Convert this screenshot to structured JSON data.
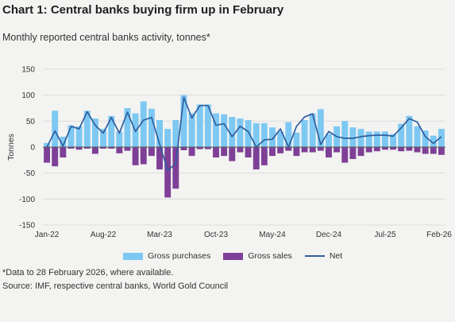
{
  "title": "Chart 1: Central banks buying firm up in February",
  "subtitle": "Monthly reported central banks activity, tonnes*",
  "footnote": "*Data to 28 February 2026, where available.",
  "source": "Source: IMF, respective central banks, World Gold Council",
  "colors": {
    "gross_purchases": "#7dc8f3",
    "gross_sales": "#7e3f97",
    "net": "#2f5d9e",
    "grid": "#dcdcdc",
    "zero_line": "#555555"
  },
  "chart_data": {
    "type": "bar",
    "ylabel": "Tonnes",
    "ylim": [
      -150,
      150
    ],
    "yticks": [
      150,
      100,
      50,
      0,
      -50,
      -100,
      -150
    ],
    "ytick_labels": [
      "150",
      "100",
      "50",
      "0",
      "-50",
      "-100",
      "-150"
    ],
    "xtick_labels": [
      "Jan-22",
      "Aug-22",
      "Mar-23",
      "Oct-23",
      "May-24",
      "Dec-24",
      "Jul-25",
      "Feb-26"
    ],
    "xtick_indices": [
      0,
      7,
      14,
      21,
      28,
      35,
      42,
      49
    ],
    "grid": true,
    "legend_position": "bottom",
    "categories": [
      "Jan-22",
      "Feb-22",
      "Mar-22",
      "Apr-22",
      "May-22",
      "Jun-22",
      "Jul-22",
      "Aug-22",
      "Sep-22",
      "Oct-22",
      "Nov-22",
      "Dec-22",
      "Jan-23",
      "Feb-23",
      "Mar-23",
      "Apr-23",
      "May-23",
      "Jun-23",
      "Jul-23",
      "Aug-23",
      "Sep-23",
      "Oct-23",
      "Nov-23",
      "Dec-23",
      "Jan-24",
      "Feb-24",
      "Mar-24",
      "Apr-24",
      "May-24",
      "Jun-24",
      "Jul-24",
      "Aug-24",
      "Sep-24",
      "Oct-24",
      "Nov-24",
      "Dec-24",
      "Jan-25",
      "Feb-25",
      "Mar-25",
      "Apr-25",
      "May-25",
      "Jun-25",
      "Jul-25",
      "Aug-25",
      "Sep-25",
      "Oct-25",
      "Nov-25",
      "Dec-25",
      "Jan-26",
      "Feb-26"
    ],
    "series": [
      {
        "name": "Gross purchases",
        "kind": "bar",
        "values": [
          8,
          70,
          20,
          42,
          40,
          70,
          55,
          35,
          60,
          30,
          75,
          65,
          88,
          74,
          52,
          35,
          52,
          100,
          65,
          82,
          82,
          65,
          63,
          58,
          55,
          52,
          46,
          46,
          38,
          30,
          48,
          28,
          52,
          65,
          73,
          25,
          40,
          50,
          38,
          35,
          30,
          30,
          30,
          25,
          45,
          60,
          40,
          32,
          22,
          35
        ]
      },
      {
        "name": "Gross sales",
        "kind": "bar",
        "values": [
          -30,
          -37,
          -20,
          -3,
          -5,
          -3,
          -13,
          -3,
          -3,
          -12,
          -7,
          -35,
          -33,
          -17,
          -43,
          -97,
          -80,
          -6,
          -17,
          -4,
          -4,
          -20,
          -17,
          -27,
          -10,
          -20,
          -43,
          -35,
          -17,
          -12,
          -7,
          -17,
          -10,
          -10,
          -7,
          -20,
          -10,
          -30,
          -23,
          -17,
          -10,
          -8,
          -5,
          -5,
          -8,
          -7,
          -10,
          -13,
          -13,
          -15
        ]
      },
      {
        "name": "Net",
        "kind": "line",
        "values": [
          0,
          31,
          2,
          40,
          35,
          68,
          42,
          27,
          57,
          27,
          67,
          30,
          52,
          57,
          6,
          -45,
          -32,
          96,
          56,
          80,
          80,
          42,
          45,
          20,
          40,
          30,
          0,
          14,
          15,
          35,
          0,
          40,
          58,
          64,
          5,
          30,
          20,
          17,
          17,
          20,
          22,
          23,
          23,
          21,
          37,
          55,
          48,
          20,
          7,
          20
        ]
      }
    ]
  },
  "legend": {
    "gross_purchases_label": "Gross purchases",
    "gross_sales_label": "Gross sales",
    "net_label": "Net"
  }
}
